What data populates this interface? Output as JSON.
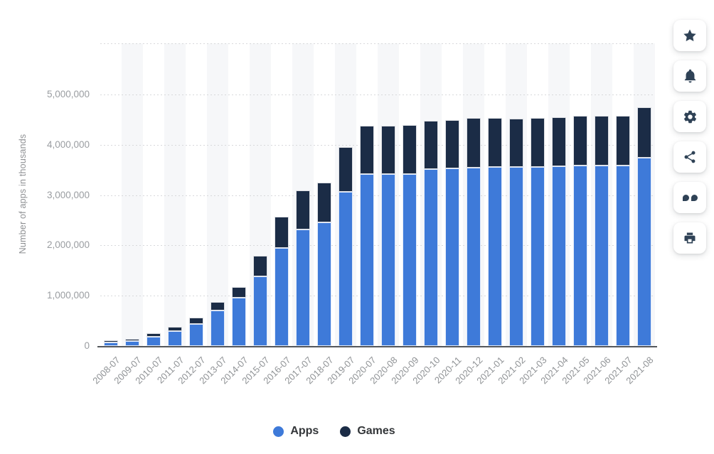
{
  "chart_data": {
    "type": "bar",
    "stacked": true,
    "title": "",
    "xlabel": "",
    "ylabel": "Number of apps in thousands",
    "categories": [
      "2008-07",
      "2009-07",
      "2010-07",
      "2011-07",
      "2012-07",
      "2013-07",
      "2014-07",
      "2015-07",
      "2016-07",
      "2017-07",
      "2018-07",
      "2019-07",
      "2020-07",
      "2020-08",
      "2020-09",
      "2020-10",
      "2020-11",
      "2020-12",
      "2021-01",
      "2021-02",
      "2021-03",
      "2021-04",
      "2021-05",
      "2021-06",
      "2021-07",
      "2021-08"
    ],
    "series": [
      {
        "name": "Apps",
        "color": "#3e7ad9",
        "values": [
          75000,
          100000,
          185000,
          290000,
          440000,
          700000,
          955000,
          1380000,
          1950000,
          2320000,
          2460000,
          3060000,
          3420000,
          3420000,
          3420000,
          3520000,
          3530000,
          3550000,
          3560000,
          3560000,
          3565000,
          3570000,
          3585000,
          3595000,
          3595000,
          3750000
        ]
      },
      {
        "name": "Games",
        "color": "#1b2c46",
        "values": [
          35000,
          45000,
          65000,
          90000,
          130000,
          175000,
          220000,
          410000,
          620000,
          780000,
          790000,
          900000,
          960000,
          960000,
          970000,
          960000,
          970000,
          980000,
          970000,
          965000,
          975000,
          975000,
          990000,
          990000,
          985000,
          1000000
        ]
      }
    ],
    "ylim": [
      0,
      6020000
    ],
    "y_tick_interval": 1000000,
    "y_ticks": [
      "0",
      "1,000,000",
      "2,000,000",
      "3,000,000",
      "4,000,000",
      "5,000,000"
    ],
    "grid": "dotted-horizontal",
    "legend_position": "bottom",
    "plot_stripe_color": "#f6f7f9"
  },
  "side_rail": {
    "buttons": [
      {
        "id": "favorite",
        "icon": "star-icon"
      },
      {
        "id": "notifications",
        "icon": "bell-icon"
      },
      {
        "id": "settings",
        "icon": "gear-icon"
      },
      {
        "id": "share",
        "icon": "share-icon"
      },
      {
        "id": "cite",
        "icon": "quote-icon"
      },
      {
        "id": "print",
        "icon": "printer-icon"
      }
    ],
    "icon_color": "#2f4256"
  }
}
